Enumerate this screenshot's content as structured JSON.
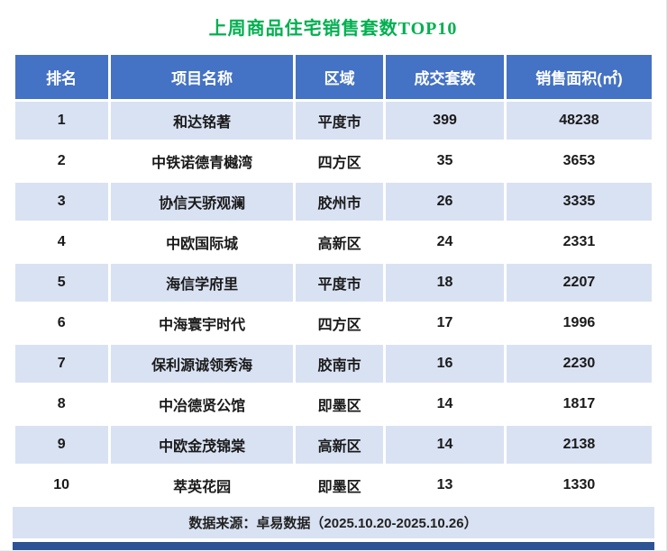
{
  "chart_data": {
    "type": "table",
    "title": "上周商品住宅销售套数TOP10",
    "columns": [
      "排名",
      "项目名称",
      "区域",
      "成交套数",
      "销售面积(㎡)"
    ],
    "rows": [
      [
        "1",
        "和达铭著",
        "平度市",
        "399",
        "48238"
      ],
      [
        "2",
        "中铁诺德青樾湾",
        "四方区",
        "35",
        "3653"
      ],
      [
        "3",
        "协信天骄观澜",
        "胶州市",
        "26",
        "3335"
      ],
      [
        "4",
        "中欧国际城",
        "高新区",
        "24",
        "2331"
      ],
      [
        "5",
        "海信学府里",
        "平度市",
        "18",
        "2207"
      ],
      [
        "6",
        "中海寰宇时代",
        "四方区",
        "17",
        "1996"
      ],
      [
        "7",
        "保利源诚领秀海",
        "胶南市",
        "16",
        "2230"
      ],
      [
        "8",
        "中冶德贤公馆",
        "即墨区",
        "14",
        "1817"
      ],
      [
        "9",
        "中欧金茂锦棠",
        "高新区",
        "14",
        "2138"
      ],
      [
        "10",
        "萃英花园",
        "即墨区",
        "13",
        "1330"
      ]
    ],
    "source_note": "数据来源：卓易数据（2025.10.20-2025.10.26）",
    "legend_position": "none",
    "grid": "white-separators"
  },
  "colors": {
    "title_green": "#00B050",
    "header_blue": "#4472C4",
    "row_alt_blue": "#D9E2F3",
    "bottom_bar_blue": "#2E5395",
    "header_text": "#ffffff"
  }
}
